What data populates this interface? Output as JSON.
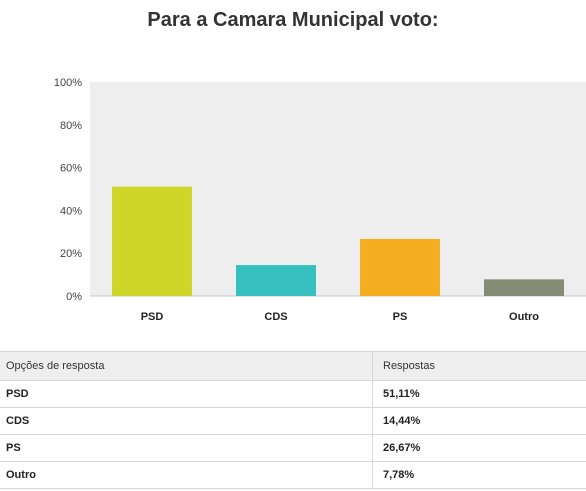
{
  "chart_data": {
    "type": "bar",
    "title": "Para a Camara Municipal voto:",
    "categories": [
      "PSD",
      "CDS",
      "PS",
      "Outro"
    ],
    "values": [
      51.11,
      14.44,
      26.67,
      7.78
    ],
    "colors": [
      "#cfd62a",
      "#35bfbf",
      "#f6ad20",
      "#858c75"
    ],
    "ylim": [
      0,
      100
    ],
    "yticks": [
      "0%",
      "20%",
      "40%",
      "60%",
      "80%",
      "100%"
    ],
    "grid": false,
    "xlabel": "",
    "ylabel": ""
  },
  "table": {
    "headers": [
      "Opções de resposta",
      "Respostas"
    ],
    "rows": [
      [
        "PSD",
        "51,11%"
      ],
      [
        "CDS",
        "14,44%"
      ],
      [
        "PS",
        "26,67%"
      ],
      [
        "Outro",
        "7,78%"
      ]
    ]
  }
}
